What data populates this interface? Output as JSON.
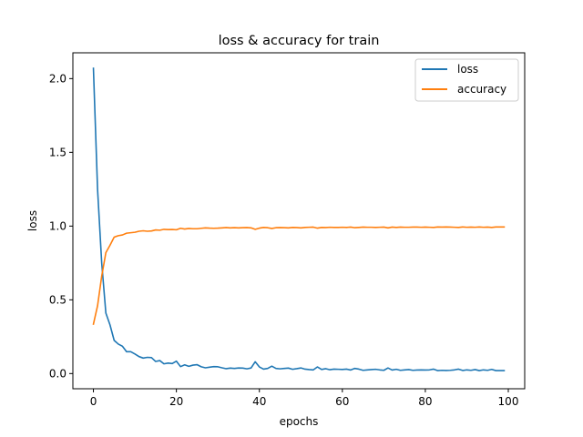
{
  "chart_data": {
    "type": "line",
    "title": "loss & accuracy for train",
    "xlabel": "epochs",
    "ylabel": "loss",
    "xlim": [
      -4.95,
      103.95
    ],
    "ylim": [
      -0.103,
      2.175
    ],
    "xticks": [
      0,
      20,
      40,
      60,
      80,
      100
    ],
    "yticks": [
      0.0,
      0.5,
      1.0,
      1.5,
      2.0
    ],
    "xtick_labels": [
      "0",
      "20",
      "40",
      "60",
      "80",
      "100"
    ],
    "ytick_labels": [
      "0.0",
      "0.5",
      "1.0",
      "1.5",
      "2.0"
    ],
    "legend_position": "top-right",
    "grid": false,
    "series": [
      {
        "name": "loss",
        "color": "#1f77b4",
        "values": [
          2.07,
          1.25,
          0.75,
          0.41,
          0.33,
          0.225,
          0.2,
          0.185,
          0.148,
          0.148,
          0.133,
          0.115,
          0.105,
          0.11,
          0.108,
          0.082,
          0.088,
          0.066,
          0.071,
          0.068,
          0.084,
          0.047,
          0.059,
          0.049,
          0.057,
          0.06,
          0.046,
          0.039,
          0.043,
          0.047,
          0.046,
          0.039,
          0.033,
          0.037,
          0.035,
          0.038,
          0.037,
          0.032,
          0.038,
          0.08,
          0.045,
          0.03,
          0.035,
          0.05,
          0.035,
          0.032,
          0.035,
          0.037,
          0.029,
          0.033,
          0.038,
          0.03,
          0.027,
          0.025,
          0.045,
          0.028,
          0.033,
          0.026,
          0.03,
          0.029,
          0.028,
          0.03,
          0.024,
          0.035,
          0.03,
          0.022,
          0.025,
          0.027,
          0.029,
          0.025,
          0.022,
          0.038,
          0.024,
          0.029,
          0.022,
          0.025,
          0.027,
          0.022,
          0.024,
          0.025,
          0.024,
          0.025,
          0.03,
          0.02,
          0.022,
          0.021,
          0.022,
          0.025,
          0.03,
          0.021,
          0.025,
          0.022,
          0.027,
          0.02,
          0.025,
          0.022,
          0.028,
          0.02,
          0.02,
          0.02
        ],
        "label": "loss"
      },
      {
        "name": "accuracy",
        "color": "#ff7f0e",
        "values": [
          0.335,
          0.46,
          0.66,
          0.82,
          0.87,
          0.925,
          0.935,
          0.94,
          0.952,
          0.955,
          0.958,
          0.965,
          0.968,
          0.965,
          0.967,
          0.974,
          0.972,
          0.978,
          0.976,
          0.977,
          0.975,
          0.985,
          0.98,
          0.984,
          0.982,
          0.982,
          0.985,
          0.988,
          0.986,
          0.985,
          0.986,
          0.988,
          0.99,
          0.988,
          0.989,
          0.988,
          0.989,
          0.99,
          0.988,
          0.978,
          0.986,
          0.991,
          0.989,
          0.984,
          0.989,
          0.99,
          0.989,
          0.988,
          0.991,
          0.99,
          0.988,
          0.991,
          0.992,
          0.993,
          0.986,
          0.991,
          0.99,
          0.992,
          0.991,
          0.991,
          0.992,
          0.991,
          0.993,
          0.989,
          0.991,
          0.993,
          0.992,
          0.992,
          0.991,
          0.992,
          0.993,
          0.988,
          0.993,
          0.991,
          0.993,
          0.992,
          0.992,
          0.993,
          0.993,
          0.992,
          0.993,
          0.992,
          0.991,
          0.994,
          0.993,
          0.994,
          0.993,
          0.992,
          0.991,
          0.994,
          0.992,
          0.993,
          0.992,
          0.994,
          0.992,
          0.993,
          0.991,
          0.994,
          0.994,
          0.994
        ],
        "label": "accuracy"
      }
    ]
  }
}
